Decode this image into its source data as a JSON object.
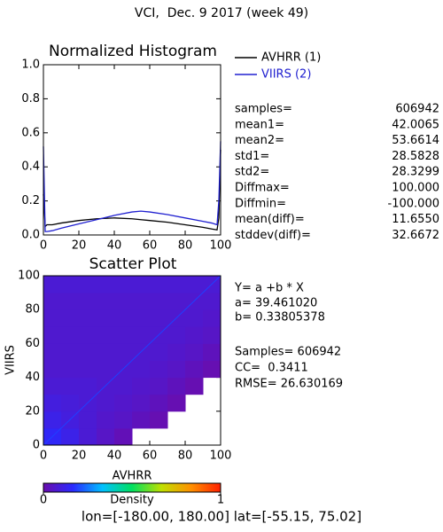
{
  "title": "VCI,  Dec. 9 2017 (week 49)",
  "footer": "lon=[-180.00, 180.00] lat=[-55.15, 75.02]",
  "chart_data": [
    {
      "type": "line",
      "title": "Normalized Histogram",
      "x": [
        0,
        1,
        2,
        5,
        10,
        20,
        30,
        40,
        50,
        55,
        60,
        70,
        80,
        90,
        95,
        98,
        99,
        100
      ],
      "series": [
        {
          "name": "AVHRR (1)",
          "color": "#000000",
          "values": [
            0.24,
            0.05,
            0.06,
            0.06,
            0.07,
            0.085,
            0.095,
            0.1,
            0.095,
            0.09,
            0.085,
            0.075,
            0.06,
            0.045,
            0.035,
            0.03,
            0.1,
            0.5
          ]
        },
        {
          "name": "VIIRS (2)",
          "color": "#2020d0",
          "values": [
            0.52,
            0.02,
            0.02,
            0.025,
            0.04,
            0.065,
            0.09,
            0.115,
            0.135,
            0.14,
            0.135,
            0.12,
            0.1,
            0.08,
            0.07,
            0.06,
            0.2,
            0.55
          ]
        }
      ],
      "xlim": [
        0,
        100
      ],
      "xticks": [
        0,
        20,
        40,
        60,
        80,
        100
      ],
      "ylim": [
        0,
        1
      ],
      "yticks": [
        {
          "value": 0,
          "label": "0.0"
        },
        {
          "value": 0.2,
          "label": "0.2"
        },
        {
          "value": 0.4,
          "label": "0.4"
        },
        {
          "value": 0.6,
          "label": "0.6"
        },
        {
          "value": 0.8,
          "label": "0.8"
        },
        {
          "value": 1,
          "label": "1.0"
        }
      ]
    },
    {
      "type": "scatter",
      "title": "Scatter Plot",
      "xlabel": "AVHRR",
      "ylabel": "VIIRS",
      "xlim": [
        0,
        100
      ],
      "ylim": [
        0,
        100
      ],
      "xticks": [
        0,
        20,
        40,
        60,
        80,
        100
      ],
      "yticks": [
        0,
        20,
        40,
        60,
        80,
        100
      ],
      "xbins": [
        0,
        10,
        20,
        30,
        40,
        50,
        60,
        70,
        80,
        90,
        100
      ],
      "ybins": [
        0,
        10,
        20,
        30,
        40,
        50,
        60,
        70,
        80,
        90,
        100
      ],
      "density": [
        [
          0.15,
          0.12,
          0.08,
          0.05,
          0.02,
          null,
          null,
          null,
          null,
          null
        ],
        [
          0.12,
          0.1,
          0.08,
          0.06,
          0.05,
          0.03,
          0.01,
          null,
          null,
          null
        ],
        [
          0.1,
          0.09,
          0.08,
          0.07,
          0.06,
          0.05,
          0.03,
          0.01,
          null,
          null
        ],
        [
          0.08,
          0.08,
          0.08,
          0.07,
          0.07,
          0.06,
          0.05,
          0.03,
          0.01,
          null
        ],
        [
          0.07,
          0.07,
          0.07,
          0.07,
          0.07,
          0.07,
          0.06,
          0.05,
          0.03,
          0.01
        ],
        [
          0.07,
          0.07,
          0.07,
          0.07,
          0.07,
          0.07,
          0.07,
          0.06,
          0.05,
          0.03
        ],
        [
          0.07,
          0.07,
          0.07,
          0.07,
          0.07,
          0.07,
          0.07,
          0.07,
          0.06,
          0.05
        ],
        [
          0.07,
          0.07,
          0.07,
          0.07,
          0.07,
          0.07,
          0.07,
          0.07,
          0.07,
          0.06
        ],
        [
          0.07,
          0.07,
          0.07,
          0.07,
          0.07,
          0.07,
          0.07,
          0.07,
          0.07,
          0.07
        ],
        [
          0.08,
          0.08,
          0.08,
          0.08,
          0.08,
          0.08,
          0.08,
          0.08,
          0.08,
          0.08
        ]
      ],
      "annotations": [
        "Y= a +b * X",
        "a= 39.461020",
        "b= 0.33805378",
        "Samples= 606942",
        "CC=  0.3411",
        "RMSE= 26.630169"
      ],
      "colorbar": {
        "label": "Density",
        "clim": [
          0,
          1
        ],
        "ticks": [
          0,
          1
        ],
        "colors": [
          "#6a0dad",
          "#2a2aff",
          "#00c0ff",
          "#00e060",
          "#c0e000",
          "#ff9000",
          "#ff2000"
        ]
      }
    }
  ],
  "stats": {
    "rows": [
      [
        "samples=",
        "606942"
      ],
      [
        "mean1=",
        "42.0065"
      ],
      [
        "mean2=",
        "53.6614"
      ],
      [
        "std1=",
        "28.5828"
      ],
      [
        "std2=",
        "28.3299"
      ],
      [
        "Diffmax=",
        "100.000"
      ],
      [
        "Diffmin=",
        "-100.000"
      ],
      [
        "mean(diff)=",
        "11.6550"
      ],
      [
        "stddev(diff)=",
        "32.6672"
      ]
    ]
  }
}
